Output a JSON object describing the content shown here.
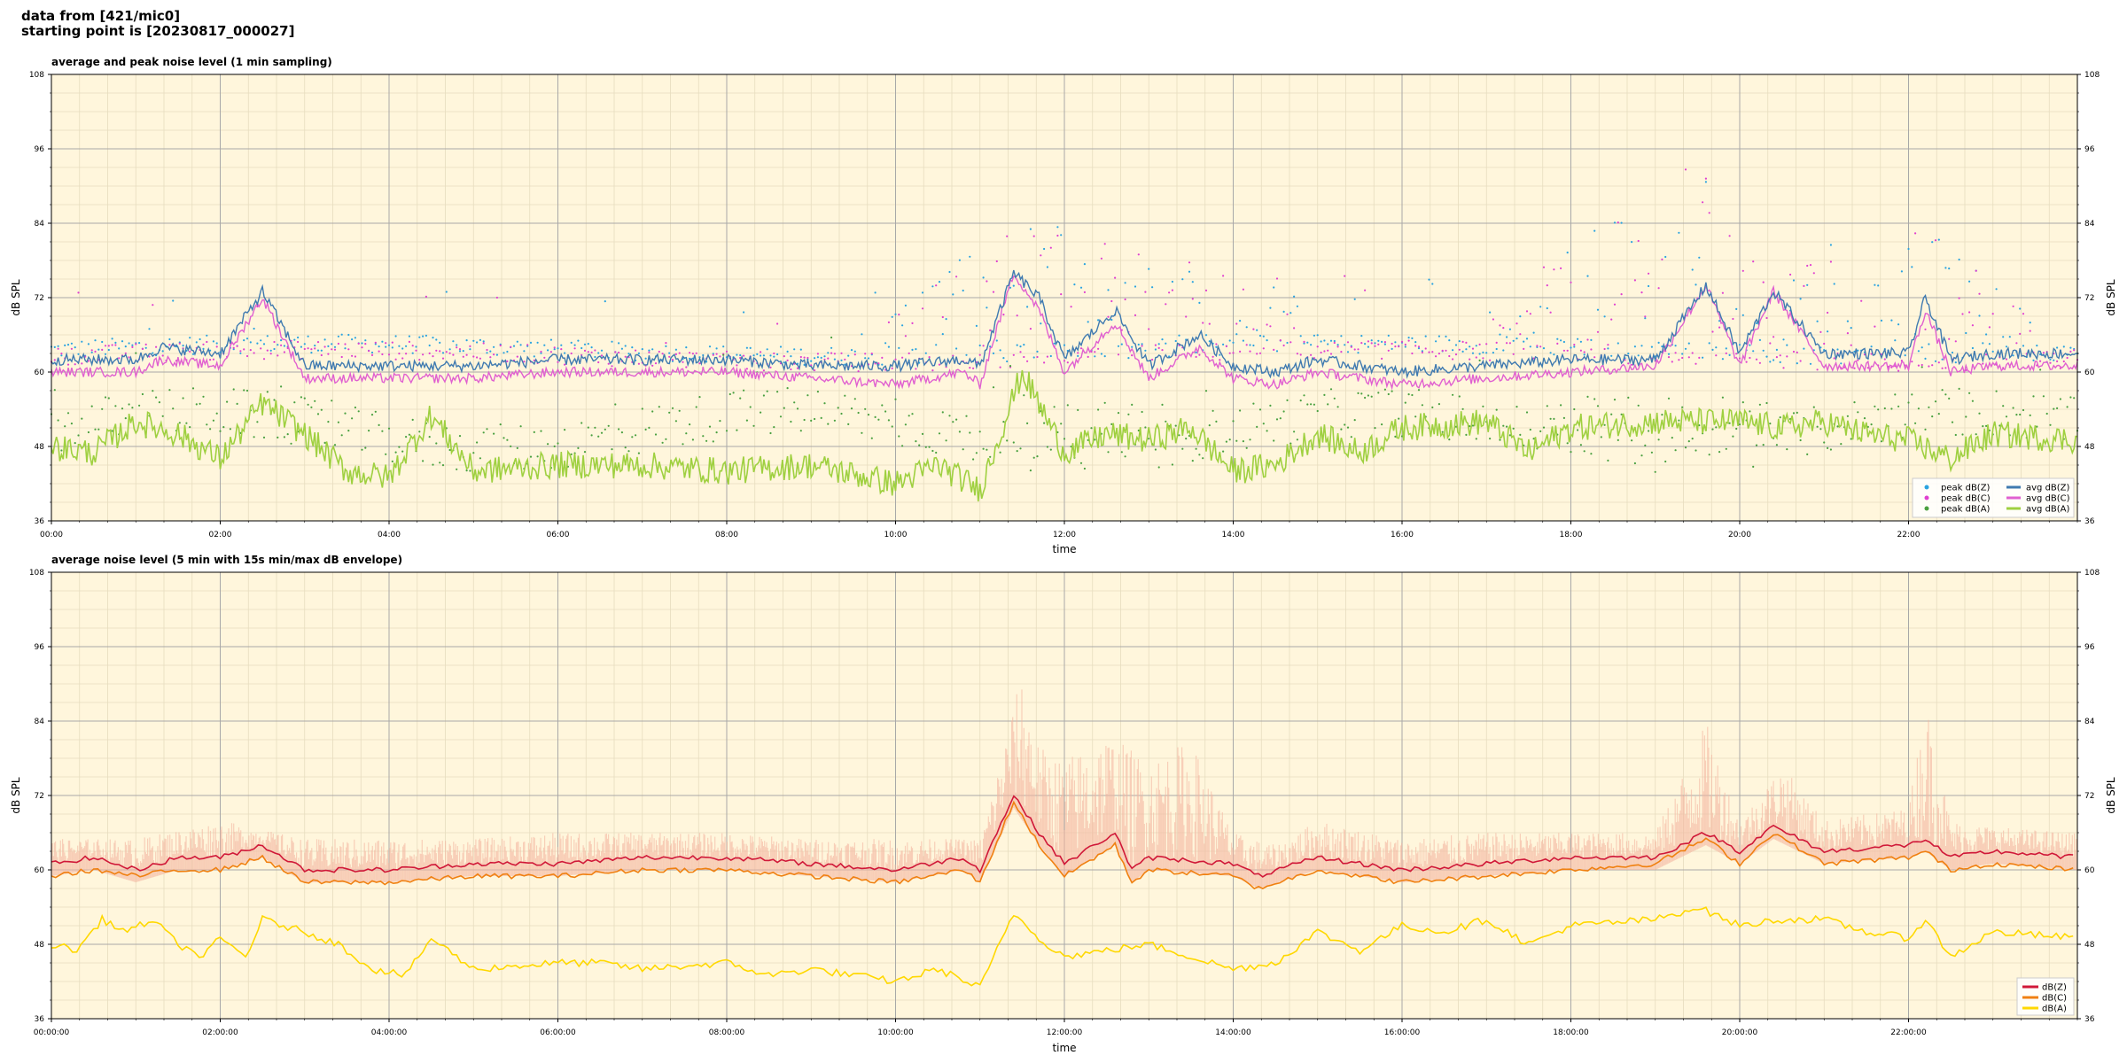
{
  "header": {
    "line1": "data from [421/mic0]",
    "line2": "starting point is [20230817_000027]"
  },
  "colors": {
    "background": "#fff6dc",
    "grid_major": "#a8a8a8",
    "grid_minor": "#e6dcbf",
    "peak_z": "#2aa3e0",
    "peak_c": "#e040d0",
    "peak_a": "#4aa040",
    "avg_z": "#3f7ab0",
    "avg_c": "#e060d0",
    "avg_a": "#9fd040",
    "env_fill": "#f4b6a0",
    "line_z": "#d01838",
    "line_c": "#f08010",
    "line_a": "#ffd800"
  },
  "chart_data": [
    {
      "type": "line",
      "title": "average and peak noise level (1 min sampling)",
      "xlabel": "time",
      "ylabel": "dB SPL",
      "ylim": [
        36,
        108
      ],
      "yticks": [
        "36",
        "48",
        "60",
        "72",
        "84",
        "96",
        "108"
      ],
      "xlim_hours": [
        0,
        24
      ],
      "xticks": [
        "00:00",
        "02:00",
        "04:00",
        "06:00",
        "08:00",
        "10:00",
        "12:00",
        "14:00",
        "16:00",
        "18:00",
        "20:00",
        "22:00"
      ],
      "grid": true,
      "legend_position": "bottom-right",
      "legend": [
        "peak dB(Z)",
        "peak dB(C)",
        "peak dB(A)",
        "avg dB(Z)",
        "avg dB(C)",
        "avg dB(A)"
      ],
      "series": [
        {
          "name": "avg dB(Z)",
          "x_hours": [
            0,
            1,
            1.3,
            2,
            2.5,
            3,
            4,
            5,
            6,
            7,
            8,
            9,
            10,
            10.8,
            11,
            11.4,
            11.7,
            12,
            12.6,
            13,
            13.6,
            14,
            14.5,
            15,
            16,
            17,
            18,
            19,
            19.6,
            20,
            20.4,
            21,
            22,
            22.2,
            22.5,
            23,
            24
          ],
          "values": [
            62,
            62,
            64,
            63,
            73,
            61,
            61,
            61,
            62,
            62,
            62,
            61,
            61,
            62,
            61,
            76,
            72,
            62,
            70,
            61,
            66,
            61,
            60,
            62,
            60,
            61,
            62,
            62,
            74,
            63,
            73,
            63,
            63,
            72,
            62,
            63,
            63
          ]
        },
        {
          "name": "avg dB(C)",
          "x_hours": [
            0,
            1,
            1.3,
            2,
            2.5,
            3,
            4,
            5,
            6,
            7,
            8,
            9,
            10,
            10.8,
            11,
            11.4,
            11.7,
            12,
            12.6,
            13,
            13.6,
            14,
            14.5,
            15,
            16,
            17,
            18,
            19,
            19.6,
            20,
            20.4,
            21,
            22,
            22.2,
            22.5,
            23,
            24
          ],
          "values": [
            60,
            60,
            62,
            61,
            72,
            59,
            59,
            59,
            60,
            60,
            60,
            59,
            58,
            60,
            58,
            76,
            70,
            60,
            68,
            59,
            64,
            59,
            58,
            60,
            58,
            59,
            60,
            61,
            74,
            61,
            73,
            61,
            61,
            70,
            60,
            61,
            61
          ]
        },
        {
          "name": "avg dB(A)",
          "x_hours": [
            0,
            0.5,
            1,
            1.5,
            2,
            2.5,
            3,
            3.5,
            4,
            4.5,
            5,
            6,
            7,
            8,
            9,
            10,
            10.5,
            11,
            11.5,
            12,
            12.5,
            13,
            13.5,
            14,
            14.5,
            15,
            15.5,
            16,
            17,
            17.5,
            18,
            19,
            19.5,
            20,
            20.5,
            21,
            21.5,
            22,
            22.5,
            23,
            24
          ],
          "values": [
            48,
            47,
            52,
            50,
            46,
            55,
            50,
            44,
            43,
            53,
            44,
            45,
            45,
            44,
            45,
            42,
            45,
            41,
            60,
            47,
            50,
            49,
            51,
            44,
            45,
            50,
            47,
            51,
            52,
            47,
            51,
            52,
            52,
            52,
            51,
            52,
            50,
            49,
            46,
            50,
            49
          ]
        },
        {
          "name": "peak dB(Z)",
          "x_hours": [
            0,
            3,
            6,
            9,
            11.5,
            12.8,
            13.7,
            16,
            19.6,
            20.4,
            22.1,
            24
          ],
          "values": [
            63,
            62,
            63,
            62,
            85,
            82,
            80,
            63,
            96,
            77,
            86,
            64
          ]
        },
        {
          "name": "peak dB(C)",
          "x_hours": [
            0,
            3,
            6,
            9,
            11.5,
            12.8,
            13.7,
            16,
            19.6,
            20.4,
            22.1,
            24
          ],
          "values": [
            62,
            61,
            62,
            61,
            84,
            80,
            79,
            62,
            95,
            76,
            85,
            63
          ]
        },
        {
          "name": "peak dB(A)",
          "x_hours": [
            0,
            3,
            6,
            9,
            11.5,
            12.8,
            13.7,
            16,
            19.6,
            20.4,
            22.1,
            24
          ],
          "values": [
            50,
            48,
            49,
            48,
            62,
            55,
            56,
            52,
            60,
            56,
            55,
            52
          ]
        }
      ]
    },
    {
      "type": "line",
      "title": "average noise level (5 min with 15s min/max dB envelope)",
      "xlabel": "time",
      "ylabel": "dB SPL",
      "ylim": [
        36,
        108
      ],
      "yticks": [
        "36",
        "48",
        "60",
        "72",
        "84",
        "96",
        "108"
      ],
      "xlim_hours": [
        0,
        24
      ],
      "xticks": [
        "00:00:00",
        "02:00:00",
        "04:00:00",
        "06:00:00",
        "08:00:00",
        "10:00:00",
        "12:00:00",
        "14:00:00",
        "16:00:00",
        "18:00:00",
        "20:00:00",
        "22:00:00"
      ],
      "grid": true,
      "legend_position": "bottom-right",
      "legend": [
        "dB(Z)",
        "dB(C)",
        "dB(A)"
      ],
      "series": [
        {
          "name": "dB(Z)",
          "x_hours": [
            0,
            0.5,
            1,
            1.5,
            2,
            2.5,
            3,
            4,
            5,
            6,
            7,
            8,
            9,
            10,
            10.8,
            11,
            11.4,
            11.7,
            12,
            12.6,
            12.8,
            13,
            14,
            14.3,
            15,
            16,
            17,
            18,
            19,
            19.6,
            20,
            20.4,
            21,
            22,
            22.2,
            22.5,
            23,
            24
          ],
          "values": [
            61,
            62,
            60,
            62,
            62,
            64,
            60,
            60,
            61,
            61,
            62,
            62,
            61,
            60,
            62,
            60,
            72,
            66,
            61,
            66,
            60,
            62,
            61,
            59,
            62,
            60,
            61,
            62,
            62,
            66,
            63,
            67,
            63,
            64,
            65,
            62,
            63,
            62
          ]
        },
        {
          "name": "dB(C)",
          "x_hours": [
            0,
            0.5,
            1,
            1.5,
            2,
            2.5,
            3,
            4,
            5,
            6,
            7,
            8,
            9,
            10,
            10.8,
            11,
            11.4,
            11.7,
            12,
            12.6,
            12.8,
            13,
            14,
            14.3,
            15,
            16,
            17,
            18,
            19,
            19.6,
            20,
            20.4,
            21,
            22,
            22.2,
            22.5,
            23,
            24
          ],
          "values": [
            59,
            60,
            59,
            60,
            60,
            62,
            58,
            58,
            59,
            59,
            60,
            60,
            59,
            58,
            60,
            58,
            71,
            64,
            59,
            64,
            58,
            60,
            59,
            57,
            60,
            58,
            59,
            60,
            61,
            65,
            61,
            66,
            61,
            62,
            63,
            60,
            61,
            60
          ]
        },
        {
          "name": "dB(A)",
          "x_hours": [
            0,
            0.3,
            0.6,
            0.9,
            1.2,
            1.5,
            1.8,
            2,
            2.3,
            2.5,
            3,
            3.4,
            3.8,
            4.2,
            4.5,
            5,
            6,
            6.5,
            7,
            8,
            8.5,
            9,
            10,
            10.5,
            11,
            11.4,
            11.7,
            12,
            12.5,
            13,
            13.5,
            14,
            14.5,
            15,
            15.5,
            16,
            16.5,
            17,
            17.5,
            18,
            19,
            19.5,
            20,
            20.5,
            21,
            21.5,
            22,
            22.2,
            22.5,
            23,
            24
          ],
          "values": [
            48,
            47,
            52,
            50,
            52,
            48,
            46,
            49,
            46,
            52,
            50,
            48,
            44,
            43,
            49,
            44,
            45,
            45,
            44,
            45,
            43,
            44,
            42,
            44,
            41,
            53,
            49,
            46,
            47,
            48,
            46,
            44,
            45,
            50,
            47,
            51,
            50,
            52,
            48,
            51,
            52,
            54,
            51,
            52,
            52,
            50,
            49,
            52,
            46,
            50,
            49
          ]
        },
        {
          "name": "envelope max",
          "x_hours": [
            0,
            1,
            2,
            3,
            4,
            5,
            6,
            7,
            8,
            9,
            10,
            11,
            11.5,
            11.7,
            12,
            12.5,
            13,
            13.5,
            14,
            14.5,
            15,
            16,
            17,
            18,
            19,
            19.6,
            20,
            20.5,
            21,
            22,
            22.2,
            22.5,
            23,
            24
          ],
          "values": [
            63,
            63,
            66,
            63,
            63,
            63,
            64,
            64,
            64,
            63,
            63,
            63,
            90,
            78,
            76,
            80,
            76,
            79,
            64,
            62,
            66,
            63,
            64,
            64,
            64,
            82,
            66,
            75,
            66,
            68,
            86,
            66,
            65,
            64
          ]
        }
      ]
    }
  ]
}
